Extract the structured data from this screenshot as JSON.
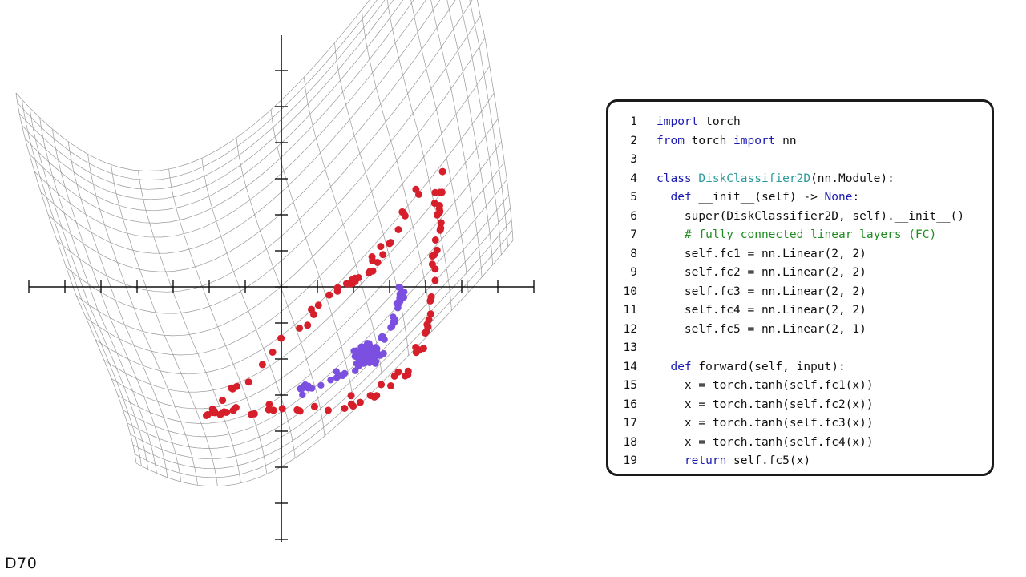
{
  "slide_label": "D70",
  "colors": {
    "red_points": "#d61f2a",
    "blue_points": "#7b4fe0",
    "mesh": "#9a9a9a",
    "axis": "#111111",
    "keyword": "#1a1ab4",
    "class_name": "#2a9a9a",
    "comment": "#1f8a1f"
  },
  "code": {
    "lines": [
      {
        "num": "1",
        "parts": [
          {
            "t": "kw",
            "s": "import"
          },
          {
            "t": "tx",
            "s": " torch"
          }
        ]
      },
      {
        "num": "2",
        "parts": [
          {
            "t": "kw",
            "s": "from"
          },
          {
            "t": "tx",
            "s": " torch "
          },
          {
            "t": "kw",
            "s": "import"
          },
          {
            "t": "tx",
            "s": " nn"
          }
        ]
      },
      {
        "num": "3",
        "parts": []
      },
      {
        "num": "4",
        "parts": [
          {
            "t": "kw",
            "s": "class"
          },
          {
            "t": "tx",
            "s": " "
          },
          {
            "t": "cls",
            "s": "DiskClassifier2D"
          },
          {
            "t": "tx",
            "s": "(nn.Module):"
          }
        ]
      },
      {
        "num": "5",
        "parts": [
          {
            "t": "tx",
            "s": "  "
          },
          {
            "t": "kw",
            "s": "def"
          },
          {
            "t": "tx",
            "s": " __init__(self) -> "
          },
          {
            "t": "kw",
            "s": "None"
          },
          {
            "t": "tx",
            "s": ":"
          }
        ]
      },
      {
        "num": "6",
        "parts": [
          {
            "t": "tx",
            "s": "    super(DiskClassifier2D, self).__init__()"
          }
        ]
      },
      {
        "num": "7",
        "parts": [
          {
            "t": "tx",
            "s": "    "
          },
          {
            "t": "cm",
            "s": "# fully connected linear layers (FC)"
          }
        ]
      },
      {
        "num": "8",
        "parts": [
          {
            "t": "tx",
            "s": "    self.fc1 = nn.Linear(2, 2)"
          }
        ]
      },
      {
        "num": "9",
        "parts": [
          {
            "t": "tx",
            "s": "    self.fc2 = nn.Linear(2, 2)"
          }
        ]
      },
      {
        "num": "10",
        "parts": [
          {
            "t": "tx",
            "s": "    self.fc3 = nn.Linear(2, 2)"
          }
        ]
      },
      {
        "num": "11",
        "parts": [
          {
            "t": "tx",
            "s": "    self.fc4 = nn.Linear(2, 2)"
          }
        ]
      },
      {
        "num": "12",
        "parts": [
          {
            "t": "tx",
            "s": "    self.fc5 = nn.Linear(2, 1)"
          }
        ]
      },
      {
        "num": "13",
        "parts": []
      },
      {
        "num": "14",
        "parts": [
          {
            "t": "tx",
            "s": "  "
          },
          {
            "t": "kw",
            "s": "def"
          },
          {
            "t": "tx",
            "s": " forward(self, input):"
          }
        ]
      },
      {
        "num": "15",
        "parts": [
          {
            "t": "tx",
            "s": "    x = torch.tanh(self.fc1(x))"
          }
        ]
      },
      {
        "num": "16",
        "parts": [
          {
            "t": "tx",
            "s": "    x = torch.tanh(self.fc2(x))"
          }
        ]
      },
      {
        "num": "17",
        "parts": [
          {
            "t": "tx",
            "s": "    x = torch.tanh(self.fc3(x))"
          }
        ]
      },
      {
        "num": "18",
        "parts": [
          {
            "t": "tx",
            "s": "    x = torch.tanh(self.fc4(x))"
          }
        ]
      },
      {
        "num": "19",
        "parts": [
          {
            "t": "tx",
            "s": "    "
          },
          {
            "t": "kw",
            "s": "return"
          },
          {
            "t": "tx",
            "s": " self.fc5(x)"
          }
        ]
      }
    ]
  }
}
